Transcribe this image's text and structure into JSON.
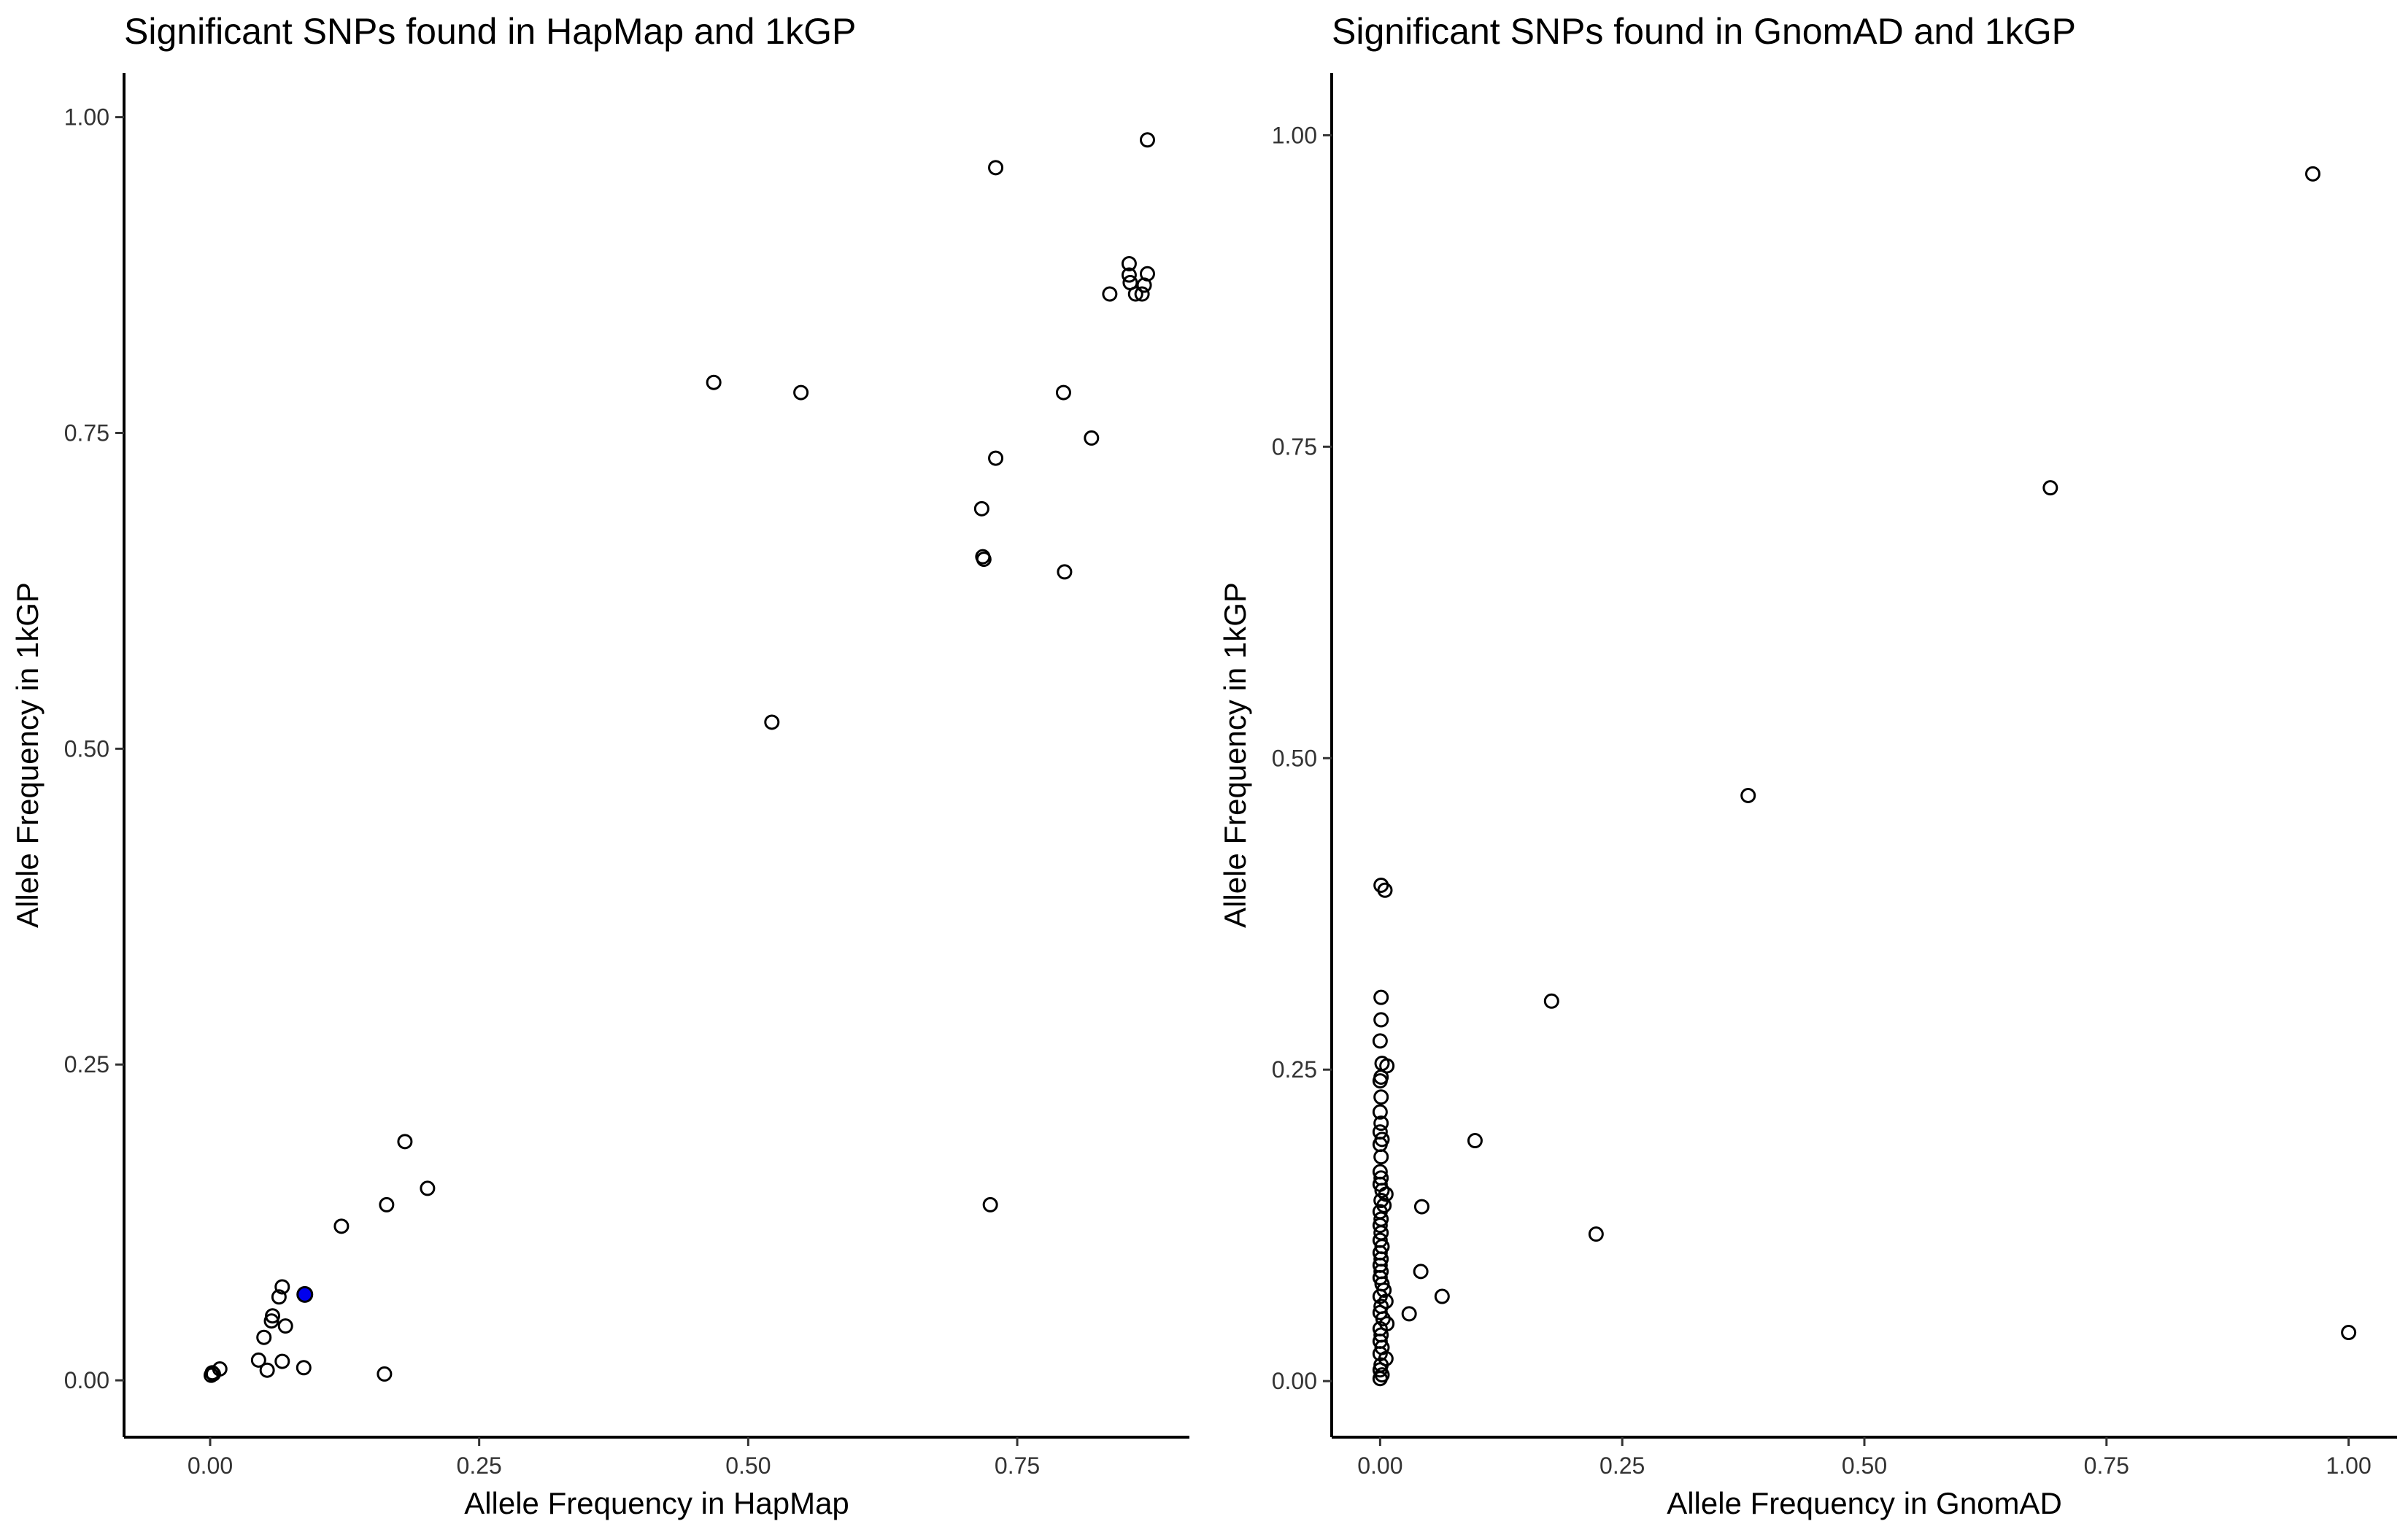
{
  "chart_data": [
    {
      "type": "scatter",
      "title": "Significant SNPs found in HapMap and 1kGP",
      "xlabel": "Allele Frequency in HapMap",
      "ylabel": "Allele Frequency in 1kGP",
      "xlim": [
        -0.08,
        0.91
      ],
      "ylim": [
        -0.045,
        1.035
      ],
      "xticks": [
        "0.00",
        "0.25",
        "0.50",
        "0.75"
      ],
      "yticks": [
        "0.00",
        "0.25",
        "0.50",
        "0.75",
        "1.00"
      ],
      "grid": false,
      "point_color": "#000000",
      "highlight_color": "#0000ee",
      "points": [
        {
          "x": 0.001,
          "y": 0.004
        },
        {
          "x": 0.002,
          "y": 0.006
        },
        {
          "x": 0.003,
          "y": 0.005
        },
        {
          "x": 0.009,
          "y": 0.009
        },
        {
          "x": 0.045,
          "y": 0.016
        },
        {
          "x": 0.05,
          "y": 0.034
        },
        {
          "x": 0.053,
          "y": 0.008
        },
        {
          "x": 0.057,
          "y": 0.047
        },
        {
          "x": 0.058,
          "y": 0.051
        },
        {
          "x": 0.064,
          "y": 0.066
        },
        {
          "x": 0.067,
          "y": 0.074
        },
        {
          "x": 0.067,
          "y": 0.015
        },
        {
          "x": 0.07,
          "y": 0.043
        },
        {
          "x": 0.088,
          "y": 0.068,
          "highlight": true
        },
        {
          "x": 0.087,
          "y": 0.01
        },
        {
          "x": 0.122,
          "y": 0.122
        },
        {
          "x": 0.162,
          "y": 0.005
        },
        {
          "x": 0.164,
          "y": 0.139
        },
        {
          "x": 0.181,
          "y": 0.189
        },
        {
          "x": 0.202,
          "y": 0.152
        },
        {
          "x": 0.468,
          "y": 0.79
        },
        {
          "x": 0.522,
          "y": 0.521
        },
        {
          "x": 0.549,
          "y": 0.782
        },
        {
          "x": 0.717,
          "y": 0.69
        },
        {
          "x": 0.718,
          "y": 0.652
        },
        {
          "x": 0.719,
          "y": 0.65
        },
        {
          "x": 0.725,
          "y": 0.139
        },
        {
          "x": 0.73,
          "y": 0.96
        },
        {
          "x": 0.73,
          "y": 0.73
        },
        {
          "x": 0.793,
          "y": 0.782
        },
        {
          "x": 0.794,
          "y": 0.64
        },
        {
          "x": 0.819,
          "y": 0.746
        },
        {
          "x": 0.836,
          "y": 0.86
        },
        {
          "x": 0.854,
          "y": 0.884
        },
        {
          "x": 0.854,
          "y": 0.875
        },
        {
          "x": 0.855,
          "y": 0.869
        },
        {
          "x": 0.86,
          "y": 0.86
        },
        {
          "x": 0.866,
          "y": 0.86
        },
        {
          "x": 0.868,
          "y": 0.867
        },
        {
          "x": 0.871,
          "y": 0.876
        },
        {
          "x": 0.871,
          "y": 0.982
        }
      ]
    },
    {
      "type": "scatter",
      "title": "Significant SNPs found in GnomAD and 1kGP",
      "xlabel": "Allele Frequency in GnomAD",
      "ylabel": "Allele Frequency in 1kGP",
      "xlim": [
        -0.05,
        1.05
      ],
      "ylim": [
        -0.045,
        1.05
      ],
      "xticks": [
        "0.00",
        "0.25",
        "0.50",
        "0.75",
        "1.00"
      ],
      "yticks": [
        "0.00",
        "0.25",
        "0.50",
        "0.75",
        "1.00"
      ],
      "grid": false,
      "point_color": "#000000",
      "points": [
        {
          "x": 0.001,
          "y": 0.398
        },
        {
          "x": 0.005,
          "y": 0.394
        },
        {
          "x": 0.001,
          "y": 0.308
        },
        {
          "x": 0.001,
          "y": 0.29
        },
        {
          "x": 0.0,
          "y": 0.273
        },
        {
          "x": 0.002,
          "y": 0.255
        },
        {
          "x": 0.007,
          "y": 0.253
        },
        {
          "x": 0.001,
          "y": 0.244
        },
        {
          "x": 0.0,
          "y": 0.241
        },
        {
          "x": 0.001,
          "y": 0.228
        },
        {
          "x": 0.0,
          "y": 0.216
        },
        {
          "x": 0.001,
          "y": 0.207
        },
        {
          "x": 0.0,
          "y": 0.2
        },
        {
          "x": 0.002,
          "y": 0.194
        },
        {
          "x": 0.0,
          "y": 0.19
        },
        {
          "x": 0.001,
          "y": 0.18
        },
        {
          "x": 0.0,
          "y": 0.168
        },
        {
          "x": 0.001,
          "y": 0.163
        },
        {
          "x": 0.0,
          "y": 0.158
        },
        {
          "x": 0.002,
          "y": 0.153
        },
        {
          "x": 0.006,
          "y": 0.15
        },
        {
          "x": 0.001,
          "y": 0.145
        },
        {
          "x": 0.004,
          "y": 0.141
        },
        {
          "x": 0.0,
          "y": 0.136
        },
        {
          "x": 0.001,
          "y": 0.13
        },
        {
          "x": 0.0,
          "y": 0.125
        },
        {
          "x": 0.001,
          "y": 0.119
        },
        {
          "x": 0.0,
          "y": 0.113
        },
        {
          "x": 0.002,
          "y": 0.108
        },
        {
          "x": 0.0,
          "y": 0.103
        },
        {
          "x": 0.001,
          "y": 0.098
        },
        {
          "x": 0.0,
          "y": 0.093
        },
        {
          "x": 0.001,
          "y": 0.088
        },
        {
          "x": 0.0,
          "y": 0.083
        },
        {
          "x": 0.002,
          "y": 0.078
        },
        {
          "x": 0.004,
          "y": 0.073
        },
        {
          "x": 0.0,
          "y": 0.068
        },
        {
          "x": 0.006,
          "y": 0.064
        },
        {
          "x": 0.001,
          "y": 0.06
        },
        {
          "x": 0.0,
          "y": 0.055
        },
        {
          "x": 0.003,
          "y": 0.05
        },
        {
          "x": 0.007,
          "y": 0.046
        },
        {
          "x": 0.0,
          "y": 0.042
        },
        {
          "x": 0.001,
          "y": 0.037
        },
        {
          "x": 0.0,
          "y": 0.032
        },
        {
          "x": 0.002,
          "y": 0.027
        },
        {
          "x": 0.0,
          "y": 0.022
        },
        {
          "x": 0.006,
          "y": 0.018
        },
        {
          "x": 0.001,
          "y": 0.013
        },
        {
          "x": 0.0,
          "y": 0.009
        },
        {
          "x": 0.002,
          "y": 0.005
        },
        {
          "x": 0.0,
          "y": 0.002
        },
        {
          "x": 0.043,
          "y": 0.14
        },
        {
          "x": 0.042,
          "y": 0.088
        },
        {
          "x": 0.03,
          "y": 0.054
        },
        {
          "x": 0.064,
          "y": 0.068
        },
        {
          "x": 0.098,
          "y": 0.193
        },
        {
          "x": 0.177,
          "y": 0.305
        },
        {
          "x": 0.223,
          "y": 0.118
        },
        {
          "x": 0.38,
          "y": 0.47
        },
        {
          "x": 0.692,
          "y": 0.717
        },
        {
          "x": 0.963,
          "y": 0.969
        },
        {
          "x": 1.0,
          "y": 0.039
        }
      ]
    }
  ]
}
